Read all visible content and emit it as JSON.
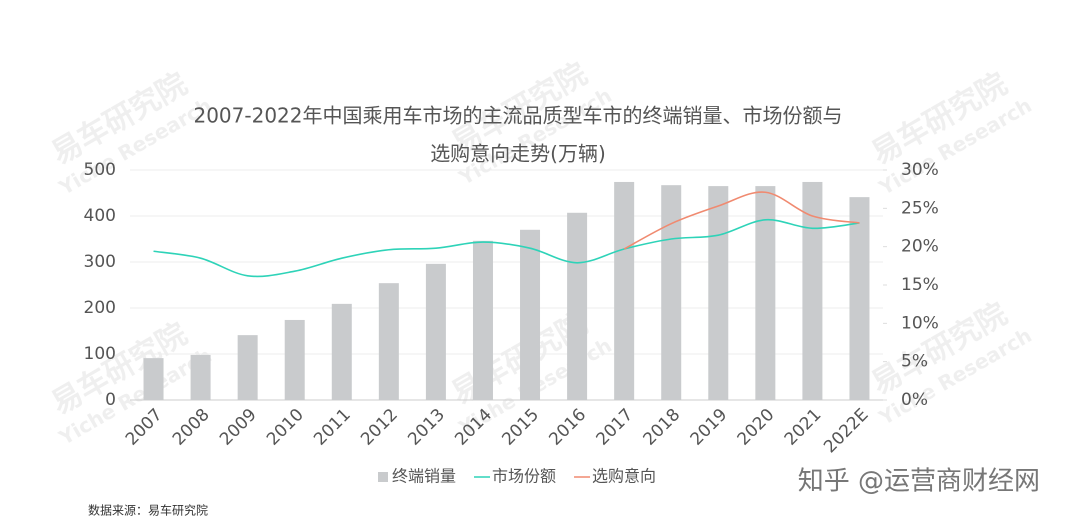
{
  "chart_data": {
    "type": "bar-line",
    "title": [
      "2007-2022年中国乘用车市场的主流品质型车市的终端销量、市场份额与",
      "选购意向走势(万辆)"
    ],
    "categories": [
      "2007",
      "2008",
      "2009",
      "2010",
      "2011",
      "2012",
      "2013",
      "2014",
      "2015",
      "2016",
      "2017",
      "2018",
      "2019",
      "2020",
      "2021",
      "2022E"
    ],
    "series": [
      {
        "name": "终端销量",
        "color": "#c9cbcd",
        "kind": "bar",
        "values": [
          91,
          98,
          141,
          174,
          209,
          254,
          296,
          346,
          370,
          407,
          474,
          467,
          465,
          465,
          474,
          441
        ]
      },
      {
        "name": "市场份额",
        "color": "#2ed3b8",
        "kind": "line",
        "axis": "y2",
        "values": [
          19.4,
          18.5,
          16.2,
          16.8,
          18.5,
          19.6,
          19.8,
          20.6,
          19.8,
          17.9,
          19.7,
          21.0,
          21.5,
          23.5,
          22.4,
          23.1
        ]
      },
      {
        "name": "选购意向",
        "color": "#f08a70",
        "kind": "line",
        "axis": "y2",
        "values": [
          null,
          null,
          null,
          null,
          null,
          null,
          null,
          null,
          null,
          null,
          19.7,
          23.0,
          25.3,
          27.1,
          24.0,
          23.1
        ]
      }
    ],
    "ylim": [
      0,
      500
    ],
    "yticks": [
      0,
      100,
      200,
      300,
      400,
      500
    ],
    "y2lim": [
      0,
      30
    ],
    "y2ticks": [
      {
        "value": 0,
        "label": "0%"
      },
      {
        "value": 5,
        "label": "5%"
      },
      {
        "value": 10,
        "label": "10%"
      },
      {
        "value": 15,
        "label": "15%"
      },
      {
        "value": 20,
        "label": "20%"
      },
      {
        "value": 25,
        "label": "25%"
      },
      {
        "value": 30,
        "label": "30%"
      }
    ],
    "grid": true,
    "legend": "bottom",
    "source": "数据来源：易车研究院",
    "watermark": [
      "易车研究院",
      "Yiche Research"
    ],
    "credit": "知乎 @运营商财经网"
  }
}
